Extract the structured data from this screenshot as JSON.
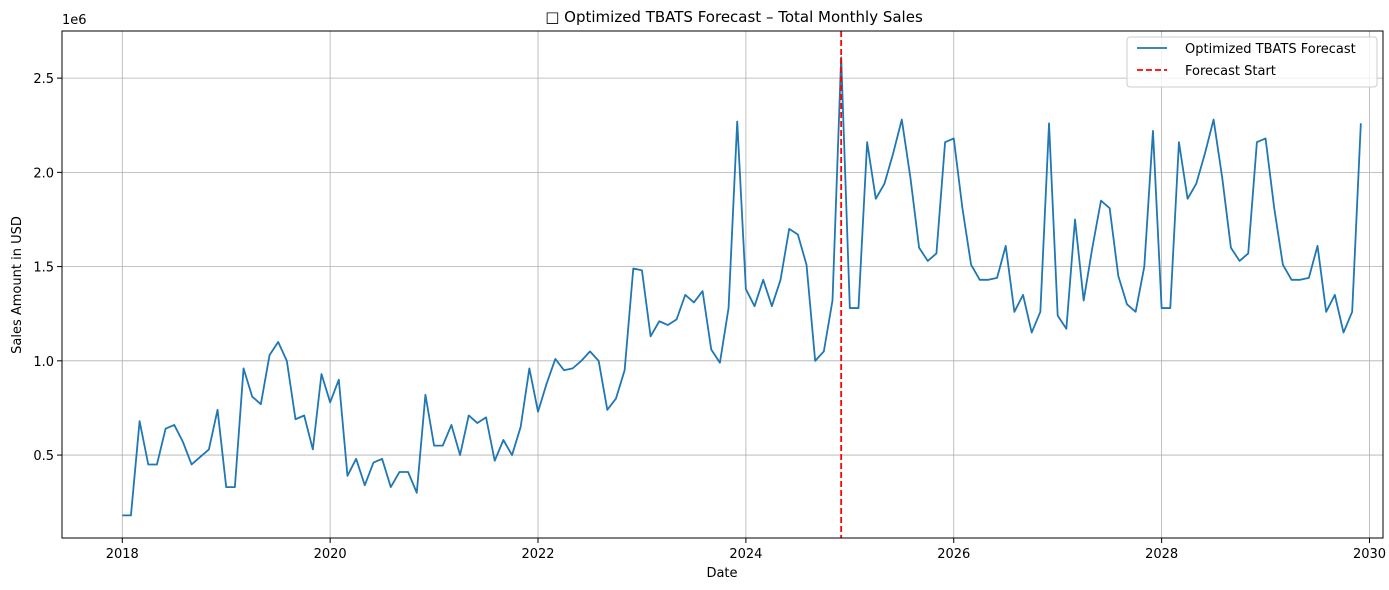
{
  "chart_data": {
    "type": "line",
    "title": "□ Optimized TBATS Forecast – Total Monthly Sales",
    "xlabel": "Date",
    "ylabel": "Sales Amount in USD",
    "y_scale_note": "1e6",
    "x_ticks": [
      "2018",
      "2020",
      "2022",
      "2024",
      "2026",
      "2028",
      "2030"
    ],
    "y_ticks": [
      "0.5",
      "1.0",
      "1.5",
      "2.0",
      "2.5"
    ],
    "xlim": [
      2017.42,
      2030.13
    ],
    "ylim": [
      0.06,
      2.75
    ],
    "grid": true,
    "legend_position": "top-right",
    "colors": {
      "series": "#1f77b4",
      "forecast_start": "#ff0000",
      "grid": "#b0b0b0"
    },
    "forecast_start": {
      "name": "Forecast Start",
      "x": "2024-12"
    },
    "series": [
      {
        "name": "Optimized TBATS Forecast",
        "start": "2018-01",
        "frequency": "monthly",
        "values": [
          0.18,
          0.18,
          0.68,
          0.45,
          0.45,
          0.64,
          0.66,
          0.57,
          0.45,
          0.49,
          0.53,
          0.74,
          0.33,
          0.33,
          0.96,
          0.81,
          0.77,
          1.03,
          1.1,
          1.0,
          0.69,
          0.71,
          0.53,
          0.93,
          0.78,
          0.9,
          0.39,
          0.48,
          0.34,
          0.46,
          0.48,
          0.33,
          0.41,
          0.41,
          0.3,
          0.82,
          0.55,
          0.55,
          0.66,
          0.5,
          0.71,
          0.67,
          0.7,
          0.47,
          0.58,
          0.5,
          0.65,
          0.96,
          0.73,
          0.88,
          1.01,
          0.95,
          0.96,
          1.0,
          1.05,
          1.0,
          0.74,
          0.8,
          0.95,
          1.49,
          1.48,
          1.13,
          1.21,
          1.19,
          1.22,
          1.35,
          1.31,
          1.37,
          1.06,
          0.99,
          1.28,
          2.27,
          1.38,
          1.29,
          1.43,
          1.29,
          1.43,
          1.7,
          1.67,
          1.51,
          1.0,
          1.05,
          1.32,
          2.61,
          1.28,
          1.28,
          2.16,
          1.86,
          1.94,
          2.1,
          2.28,
          1.97,
          1.6,
          1.53,
          1.57,
          2.16,
          2.18,
          1.81,
          1.51,
          1.43,
          1.43,
          1.44,
          1.61,
          1.26,
          1.35,
          1.15,
          1.26,
          2.26,
          1.24,
          1.17,
          1.75,
          1.32,
          1.6,
          1.85,
          1.81,
          1.45,
          1.3,
          1.26,
          1.5,
          2.22,
          1.28,
          1.28,
          2.16,
          1.86,
          1.94,
          2.1,
          2.28,
          1.97,
          1.6,
          1.53,
          1.57,
          2.16,
          2.18,
          1.81,
          1.51,
          1.43,
          1.43,
          1.44,
          1.61,
          1.26,
          1.35,
          1.15,
          1.26,
          2.26
        ]
      }
    ]
  }
}
